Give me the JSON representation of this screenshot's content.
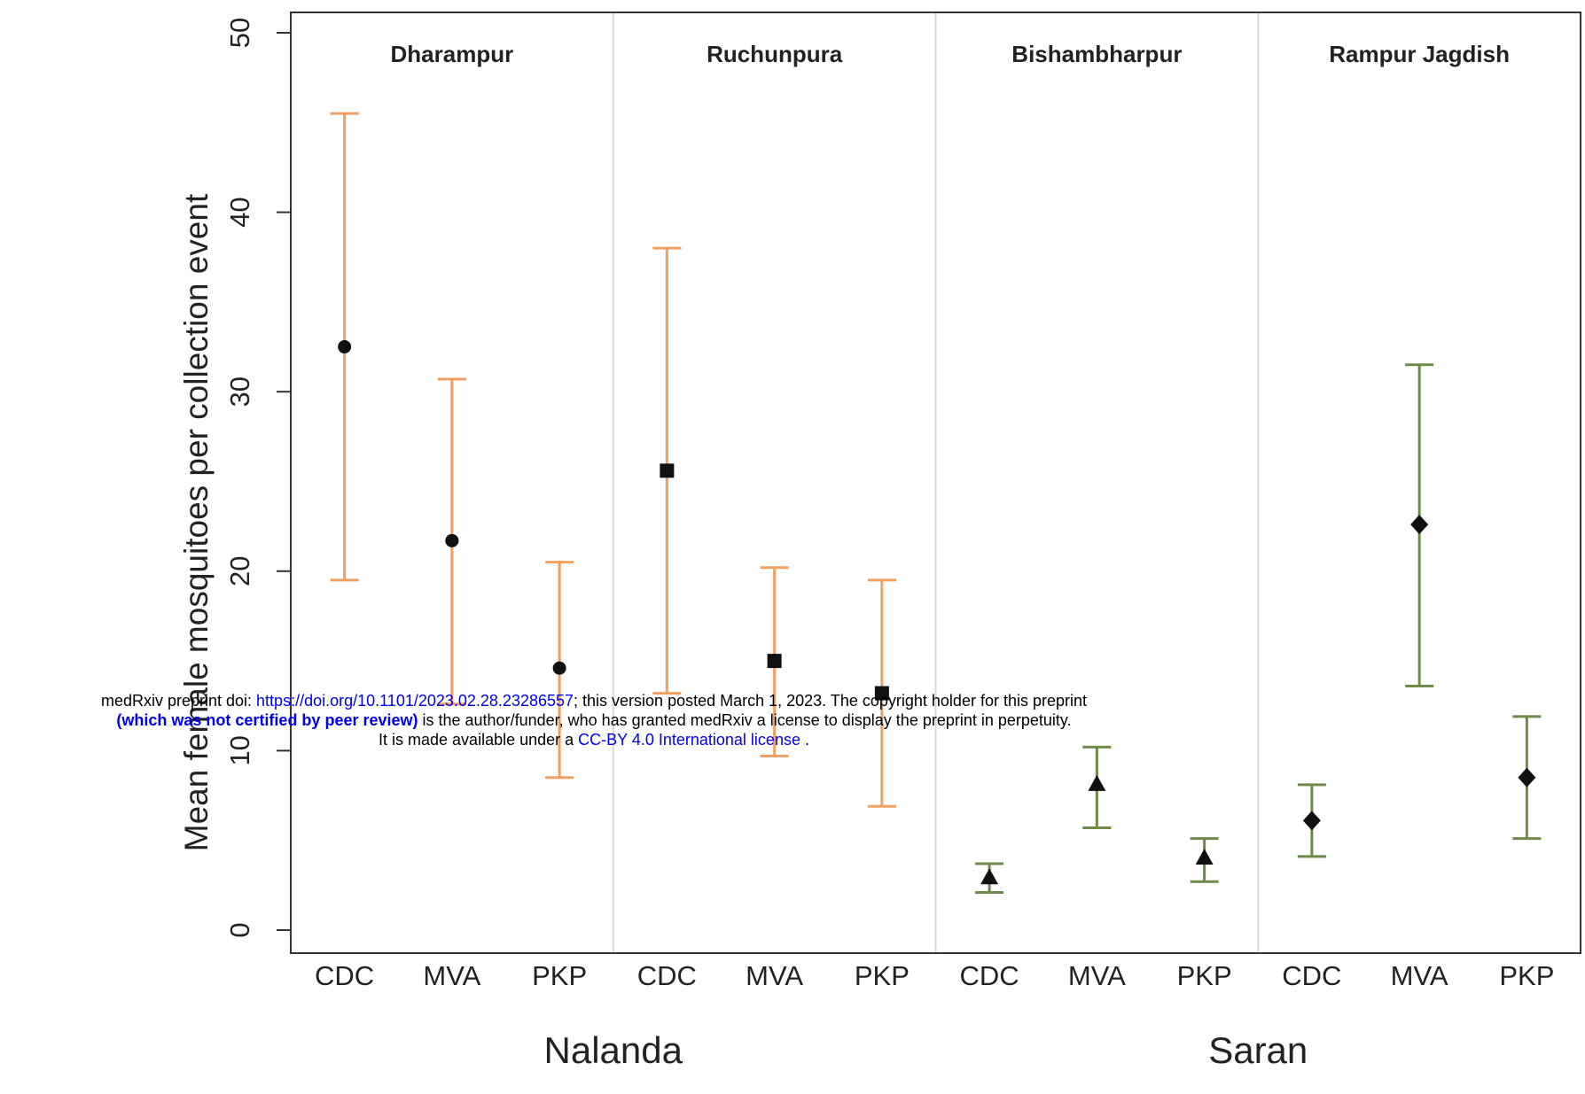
{
  "chart_data": {
    "type": "errorbar",
    "ylabel": "Mean female mosquitoes per collection event",
    "ylim": [
      0,
      50
    ],
    "yticks": [
      0,
      10,
      20,
      30,
      40,
      50
    ],
    "grid": false,
    "districts": [
      {
        "name": "Nalanda",
        "color": "#f0a060"
      },
      {
        "name": "Saran",
        "color": "#6e8a48"
      }
    ],
    "villages": [
      {
        "name": "Dharampur",
        "district": "Nalanda",
        "marker": "circle",
        "points": [
          {
            "trap": "CDC",
            "mean": 32.5,
            "lower": 19.5,
            "upper": 45.5
          },
          {
            "trap": "MVA",
            "mean": 21.7,
            "lower": 12.6,
            "upper": 30.7
          },
          {
            "trap": "PKP",
            "mean": 14.6,
            "lower": 8.5,
            "upper": 20.5
          }
        ]
      },
      {
        "name": "Ruchunpura",
        "district": "Nalanda",
        "marker": "square",
        "points": [
          {
            "trap": "CDC",
            "mean": 25.6,
            "lower": 13.2,
            "upper": 38.0
          },
          {
            "trap": "MVA",
            "mean": 15.0,
            "lower": 9.7,
            "upper": 20.2
          },
          {
            "trap": "PKP",
            "mean": 13.2,
            "lower": 6.9,
            "upper": 19.5
          }
        ]
      },
      {
        "name": "Bishambharpur",
        "district": "Saran",
        "marker": "triangle",
        "points": [
          {
            "trap": "CDC",
            "mean": 2.9,
            "lower": 2.1,
            "upper": 3.7
          },
          {
            "trap": "MVA",
            "mean": 8.1,
            "lower": 5.7,
            "upper": 10.2
          },
          {
            "trap": "PKP",
            "mean": 4.0,
            "lower": 2.7,
            "upper": 5.1
          }
        ]
      },
      {
        "name": "Rampur Jagdish",
        "district": "Saran",
        "marker": "diamond",
        "points": [
          {
            "trap": "CDC",
            "mean": 6.1,
            "lower": 4.1,
            "upper": 8.1
          },
          {
            "trap": "MVA",
            "mean": 22.6,
            "lower": 13.6,
            "upper": 31.5
          },
          {
            "trap": "PKP",
            "mean": 8.5,
            "lower": 5.1,
            "upper": 11.9
          }
        ]
      }
    ]
  },
  "watermark": {
    "line1_prefix": "medRxiv preprint doi: ",
    "line1_link": "https://doi.org/10.1101/2023.02.28.23286557",
    "line1_suffix": "; this version posted March 1, 2023. The copyright holder for this preprint",
    "line2_bold": "(which was not certified by peer review)",
    "line2_suffix": " is the author/funder, who has granted medRxiv a license to display the preprint in perpetuity.",
    "line3_prefix": "It is made available under a ",
    "line3_link": "CC-BY 4.0 International license",
    "line3_suffix": " ."
  }
}
